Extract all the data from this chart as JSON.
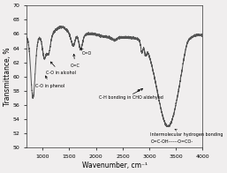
{
  "title": "",
  "xlabel": "Wavenumber, cm⁻¹",
  "ylabel": "Transmittance, %",
  "xlim": [
    700,
    4000
  ],
  "ylim": [
    50,
    70
  ],
  "yticks": [
    50,
    52,
    54,
    56,
    58,
    60,
    62,
    64,
    66,
    68,
    70
  ],
  "xticks": [
    1000,
    1500,
    2000,
    2500,
    3000,
    3500,
    4000
  ],
  "background_color": "#f0eeee",
  "line_color": "#555555",
  "annotation_fontsize": 3.5,
  "xlabel_fontsize": 5.5,
  "ylabel_fontsize": 5.5,
  "tick_fontsize": 4.5,
  "linewidth": 0.7
}
